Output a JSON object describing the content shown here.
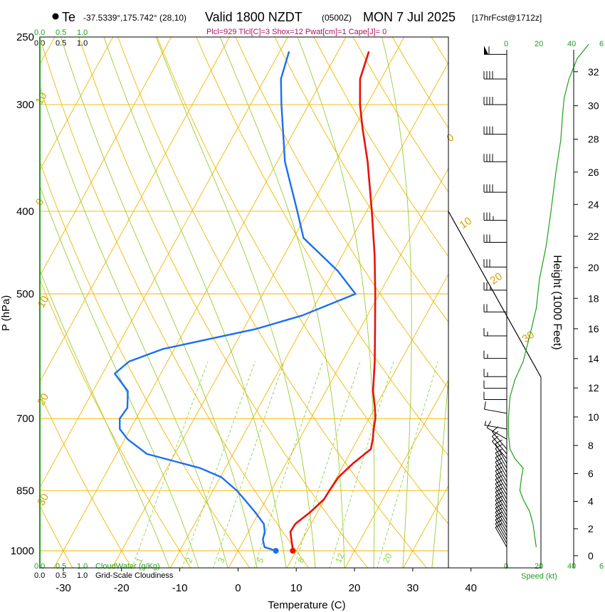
{
  "header": {
    "marker_label": "Te",
    "location": "-37.5339°,175.742° (28,10)",
    "valid": "Valid 1800 NZDT",
    "utc": "(0500Z)",
    "date": "MON 7 Jul 2025",
    "forecast": "[17hrFcst@1712z]",
    "params": "Plcl=929 Tlcl[C]=3 Shox=12 Pwat[cm]=1 Cape[J]= 0"
  },
  "colors": {
    "temperature": "#e8120c",
    "dewpoint": "#1a6ff0",
    "isotherm": "#f2b600",
    "dry_adiabat": "#f2b600",
    "moist_adiabat": "#9acd32",
    "mixing_ratio": "#8fd14f",
    "height_curve": "#1f9e1f",
    "info_text": "#b0105a"
  },
  "labels": {
    "cloud_water_top": [
      "0.0",
      "0.5",
      "1.0"
    ],
    "cloudiness_top": [
      "0.0",
      "0.5",
      "1.0"
    ],
    "cloud_water_bottom": [
      "0.0",
      "0.5",
      "1.0"
    ],
    "cloudiness_bottom": [
      "0.0",
      "0.5",
      "1.0"
    ],
    "cloud_water_title": "CloudWater (g/Kg)",
    "cloudiness_title": "Grid-Scale Cloudiness",
    "speed_ticks": [
      "0",
      "20",
      "40",
      "6"
    ],
    "speed_title": "Speed (kt)"
  },
  "chart_data": {
    "type": "skew-t log-p sounding",
    "title": "Valid 1800 NZDT (0500Z) MON 7 Jul 2025",
    "xlabel": "Temperature (C)",
    "ylabel": "P (hPa)",
    "right_label": "Height (1000 Feet)",
    "x_ticks": [
      -30,
      -20,
      -10,
      0,
      10,
      20,
      30,
      40
    ],
    "p_ticks": [
      250,
      300,
      400,
      500,
      700,
      850,
      1000
    ],
    "height_ticks": [
      0,
      2,
      4,
      6,
      8,
      10,
      12,
      14,
      16,
      18,
      20,
      22,
      24,
      26,
      28,
      30,
      32
    ],
    "dry_adiabat_labels": [
      "10",
      "0",
      "-10",
      "-20",
      "-30",
      "0",
      "10",
      "20",
      "30"
    ],
    "mixing_ratio_labels": [
      "1",
      "2",
      "3",
      "5",
      "8",
      "12",
      "20"
    ],
    "temperature_profile": [
      {
        "p": 1000,
        "t": 9.4
      },
      {
        "p": 990,
        "t": 9.0
      },
      {
        "p": 970,
        "t": 8.1
      },
      {
        "p": 950,
        "t": 7.2
      },
      {
        "p": 930,
        "t": 7.3
      },
      {
        "p": 900,
        "t": 8.8
      },
      {
        "p": 870,
        "t": 9.9
      },
      {
        "p": 850,
        "t": 10.0
      },
      {
        "p": 820,
        "t": 10.3
      },
      {
        "p": 790,
        "t": 11.5
      },
      {
        "p": 760,
        "t": 13.2
      },
      {
        "p": 740,
        "t": 12.6
      },
      {
        "p": 720,
        "t": 11.8
      },
      {
        "p": 700,
        "t": 11.1
      },
      {
        "p": 680,
        "t": 10.0
      },
      {
        "p": 650,
        "t": 8.1
      },
      {
        "p": 600,
        "t": 5.6
      },
      {
        "p": 550,
        "t": 2.6
      },
      {
        "p": 500,
        "t": -0.7
      },
      {
        "p": 450,
        "t": -4.5
      },
      {
        "p": 400,
        "t": -9.1
      },
      {
        "p": 350,
        "t": -14.5
      },
      {
        "p": 320,
        "t": -18.5
      },
      {
        "p": 300,
        "t": -21.2
      },
      {
        "p": 280,
        "t": -23.6
      },
      {
        "p": 260,
        "t": -24.7
      }
    ],
    "dewpoint_profile": [
      {
        "p": 1000,
        "td": 6.5
      },
      {
        "p": 990,
        "td": 4.2
      },
      {
        "p": 970,
        "td": 3.2
      },
      {
        "p": 950,
        "td": 2.8
      },
      {
        "p": 930,
        "td": 1.9
      },
      {
        "p": 900,
        "td": -0.8
      },
      {
        "p": 870,
        "td": -3.8
      },
      {
        "p": 850,
        "td": -5.9
      },
      {
        "p": 820,
        "td": -9.8
      },
      {
        "p": 800,
        "td": -14.3
      },
      {
        "p": 770,
        "td": -24.8
      },
      {
        "p": 740,
        "td": -29.5
      },
      {
        "p": 720,
        "td": -31.8
      },
      {
        "p": 700,
        "td": -32.8
      },
      {
        "p": 680,
        "td": -32.5
      },
      {
        "p": 650,
        "td": -34.0
      },
      {
        "p": 620,
        "td": -37.9
      },
      {
        "p": 600,
        "td": -36.6
      },
      {
        "p": 580,
        "td": -31.9
      },
      {
        "p": 550,
        "td": -18.0
      },
      {
        "p": 530,
        "td": -11.2
      },
      {
        "p": 500,
        "td": -4.1
      },
      {
        "p": 470,
        "td": -9.3
      },
      {
        "p": 430,
        "td": -18.3
      },
      {
        "p": 400,
        "td": -21.9
      },
      {
        "p": 350,
        "td": -28.7
      },
      {
        "p": 300,
        "td": -34.7
      },
      {
        "p": 280,
        "td": -37.2
      },
      {
        "p": 260,
        "td": -38.4
      }
    ],
    "wind_barbs": [
      {
        "p": 990,
        "dir": 330,
        "kt": 10
      },
      {
        "p": 980,
        "dir": 330,
        "kt": 10
      },
      {
        "p": 970,
        "dir": 330,
        "kt": 10
      },
      {
        "p": 960,
        "dir": 330,
        "kt": 10
      },
      {
        "p": 950,
        "dir": 330,
        "kt": 10
      },
      {
        "p": 940,
        "dir": 330,
        "kt": 10
      },
      {
        "p": 930,
        "dir": 330,
        "kt": 10
      },
      {
        "p": 920,
        "dir": 330,
        "kt": 10
      },
      {
        "p": 910,
        "dir": 330,
        "kt": 10
      },
      {
        "p": 900,
        "dir": 330,
        "kt": 10
      },
      {
        "p": 890,
        "dir": 330,
        "kt": 10
      },
      {
        "p": 880,
        "dir": 330,
        "kt": 10
      },
      {
        "p": 870,
        "dir": 330,
        "kt": 10
      },
      {
        "p": 860,
        "dir": 330,
        "kt": 10
      },
      {
        "p": 850,
        "dir": 330,
        "kt": 10
      },
      {
        "p": 840,
        "dir": 330,
        "kt": 10
      },
      {
        "p": 830,
        "dir": 330,
        "kt": 10
      },
      {
        "p": 820,
        "dir": 330,
        "kt": 10
      },
      {
        "p": 810,
        "dir": 330,
        "kt": 10
      },
      {
        "p": 800,
        "dir": 330,
        "kt": 10
      },
      {
        "p": 790,
        "dir": 330,
        "kt": 10
      },
      {
        "p": 780,
        "dir": 320,
        "kt": 10
      },
      {
        "p": 770,
        "dir": 320,
        "kt": 10
      },
      {
        "p": 760,
        "dir": 320,
        "kt": 10
      },
      {
        "p": 740,
        "dir": 300,
        "kt": 10
      },
      {
        "p": 720,
        "dir": 280,
        "kt": 5
      },
      {
        "p": 690,
        "dir": 280,
        "kt": 10
      },
      {
        "p": 665,
        "dir": 270,
        "kt": 10
      },
      {
        "p": 645,
        "dir": 270,
        "kt": 10
      },
      {
        "p": 625,
        "dir": 270,
        "kt": 15
      },
      {
        "p": 595,
        "dir": 270,
        "kt": 15
      },
      {
        "p": 560,
        "dir": 270,
        "kt": 15
      },
      {
        "p": 525,
        "dir": 270,
        "kt": 20
      },
      {
        "p": 495,
        "dir": 270,
        "kt": 25
      },
      {
        "p": 465,
        "dir": 270,
        "kt": 30
      },
      {
        "p": 435,
        "dir": 270,
        "kt": 30
      },
      {
        "p": 410,
        "dir": 270,
        "kt": 35
      },
      {
        "p": 380,
        "dir": 270,
        "kt": 40
      },
      {
        "p": 350,
        "dir": 270,
        "kt": 40
      },
      {
        "p": 325,
        "dir": 270,
        "kt": 40
      },
      {
        "p": 300,
        "dir": 270,
        "kt": 40
      },
      {
        "p": 280,
        "dir": 270,
        "kt": 40
      },
      {
        "p": 262,
        "dir": 270,
        "kt": 60
      }
    ],
    "speed_profile": [
      {
        "p": 990,
        "kt": 18
      },
      {
        "p": 960,
        "kt": 17
      },
      {
        "p": 930,
        "kt": 16
      },
      {
        "p": 900,
        "kt": 14
      },
      {
        "p": 870,
        "kt": 10
      },
      {
        "p": 850,
        "kt": 8
      },
      {
        "p": 820,
        "kt": 9
      },
      {
        "p": 800,
        "kt": 10
      },
      {
        "p": 780,
        "kt": 5
      },
      {
        "p": 760,
        "kt": 2
      },
      {
        "p": 730,
        "kt": 1
      },
      {
        "p": 700,
        "kt": 1
      },
      {
        "p": 660,
        "kt": 2
      },
      {
        "p": 630,
        "kt": 5
      },
      {
        "p": 600,
        "kt": 10
      },
      {
        "p": 560,
        "kt": 14
      },
      {
        "p": 520,
        "kt": 18
      },
      {
        "p": 480,
        "kt": 20
      },
      {
        "p": 440,
        "kt": 24
      },
      {
        "p": 400,
        "kt": 27
      },
      {
        "p": 360,
        "kt": 30
      },
      {
        "p": 330,
        "kt": 33
      },
      {
        "p": 310,
        "kt": 34
      },
      {
        "p": 295,
        "kt": 35
      },
      {
        "p": 280,
        "kt": 38
      },
      {
        "p": 265,
        "kt": 43
      },
      {
        "p": 255,
        "kt": 50
      }
    ]
  }
}
